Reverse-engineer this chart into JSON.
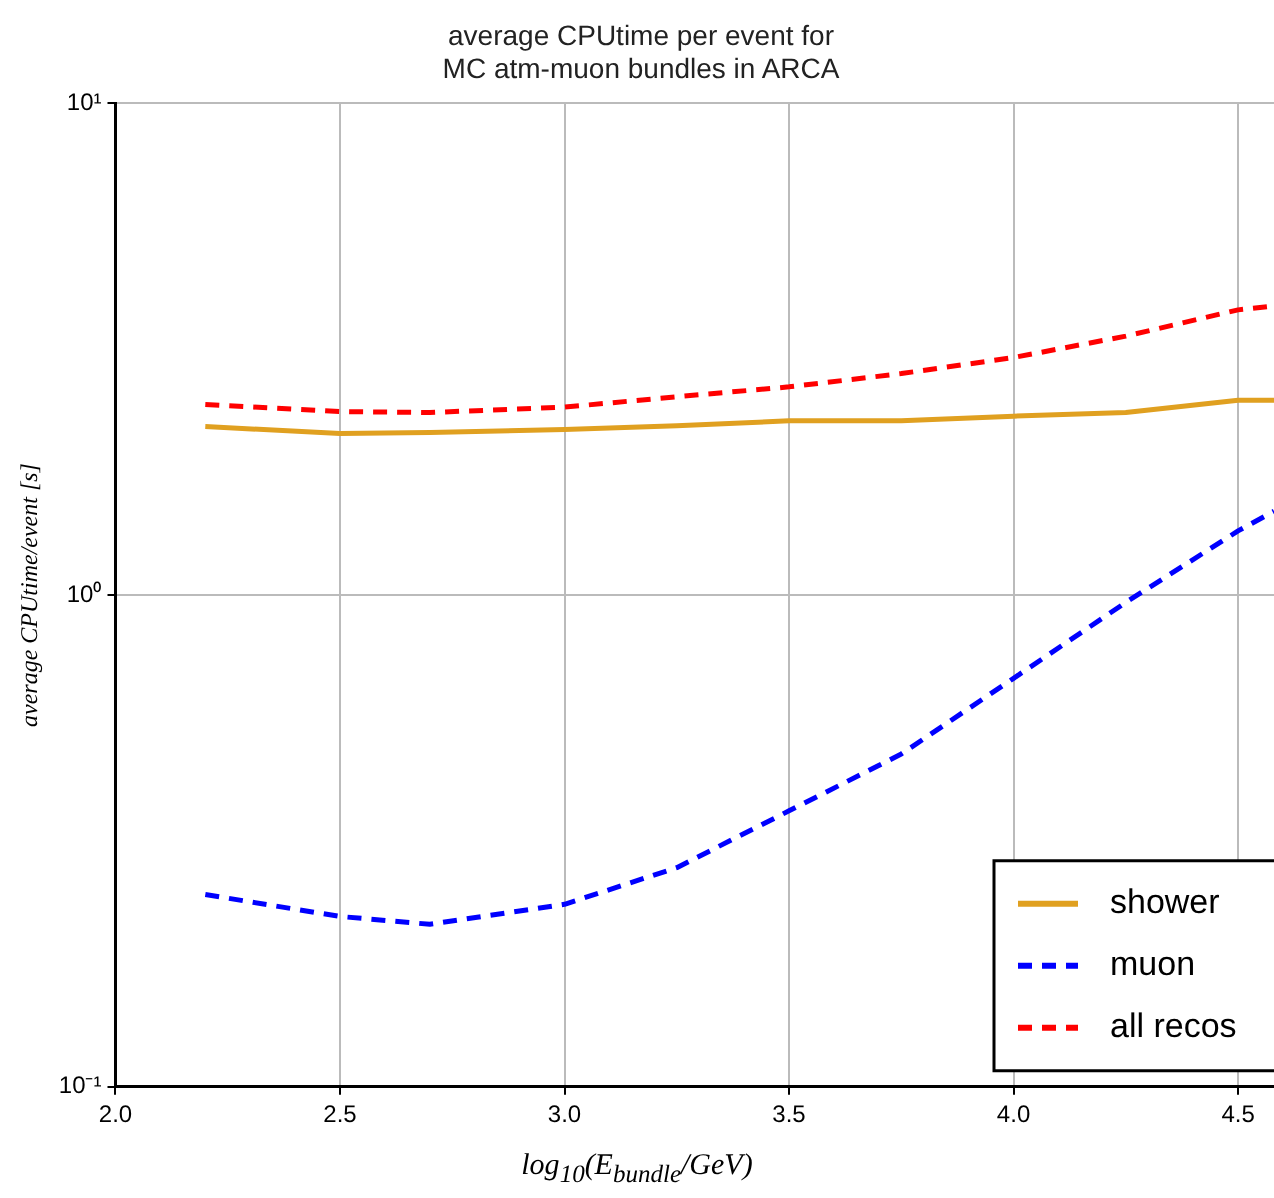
{
  "chart_data": {
    "type": "line",
    "title": "average CPUtime per event for\nMC atm-muon bundles in ARCA",
    "xlabel": "log$_{10}$(E$_{bundle}$/GeV)",
    "ylabel": "average CPUtime/event [s]",
    "x": [
      2.2,
      2.5,
      2.7,
      3.0,
      3.25,
      3.5,
      3.75,
      4.0,
      4.25,
      4.5,
      4.58
    ],
    "series": [
      {
        "name": "shower",
        "color": "#e0a020",
        "line_style": "solid",
        "values": [
          2.2,
          2.13,
          2.14,
          2.17,
          2.21,
          2.26,
          2.26,
          2.31,
          2.35,
          2.49,
          2.49
        ]
      },
      {
        "name": "muon",
        "color": "#0000ff",
        "line_style": "dashed",
        "values": [
          0.246,
          0.222,
          0.214,
          0.235,
          0.279,
          0.364,
          0.475,
          0.677,
          0.966,
          1.35,
          1.48
        ]
      },
      {
        "name": "all recos",
        "color": "#ff0000",
        "line_style": "dashed",
        "values": [
          2.44,
          2.36,
          2.35,
          2.41,
          2.53,
          2.65,
          2.82,
          3.04,
          3.36,
          3.8,
          3.87
        ]
      }
    ],
    "log": "y",
    "xlim": [
      2.0,
      4.58
    ],
    "xticks": [
      {
        "value": 2,
        "label": "2.0"
      },
      2.5,
      {
        "value": 3,
        "label": "3.0"
      },
      3.5,
      {
        "value": 4,
        "label": "4.0"
      },
      4.5
    ],
    "ylim": [
      0.1,
      10
    ],
    "yticks": [
      {
        "value": 0.1,
        "label": "10⁻¹"
      },
      {
        "value": 1,
        "label": "10⁰"
      },
      {
        "value": 10,
        "label": "10¹"
      }
    ],
    "grid": true,
    "legend": "bottom right",
    "marker": "none"
  }
}
